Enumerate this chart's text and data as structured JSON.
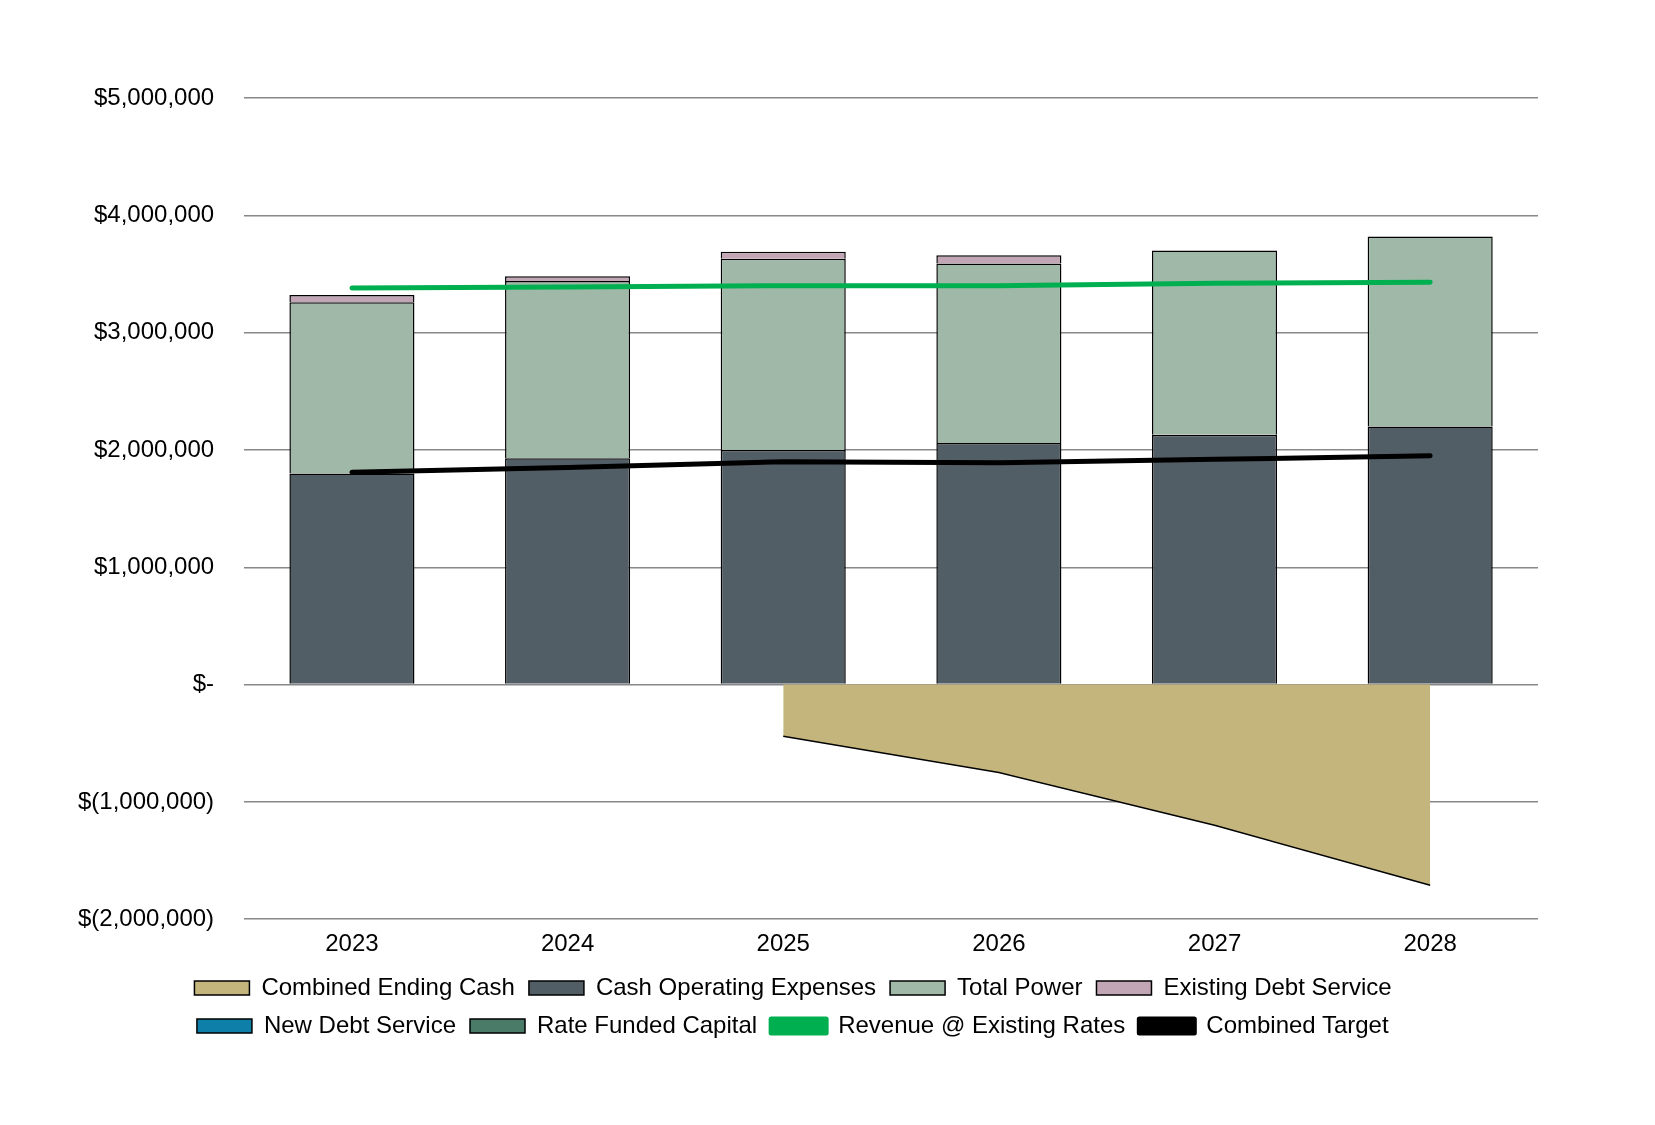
{
  "chart_data": {
    "type": "bar",
    "stacked": true,
    "categories": [
      "2023",
      "2024",
      "2025",
      "2026",
      "2027",
      "2028"
    ],
    "series": [
      {
        "name": "Combined Ending Cash",
        "type": "area",
        "color": "#c4b57d",
        "values": [
          null,
          null,
          -440000,
          -750000,
          -1200000,
          -1710000
        ]
      },
      {
        "name": "Cash Operating Expenses",
        "color": "#525e66",
        "values": [
          1800000,
          1930000,
          2000000,
          2060000,
          2130000,
          2200000
        ]
      },
      {
        "name": "Total Power",
        "color": "#a0b8a8",
        "values": [
          1460000,
          1510000,
          1630000,
          1530000,
          1570000,
          1620000
        ]
      },
      {
        "name": "Existing Debt Service",
        "color": "#c2a6b5",
        "values": [
          60000,
          40000,
          60000,
          70000,
          0,
          0
        ]
      },
      {
        "name": "New Debt Service",
        "color": "#0e7fa8",
        "values": [
          0,
          0,
          0,
          0,
          0,
          0
        ]
      },
      {
        "name": "Rate Funded Capital",
        "color": "#4a7a68",
        "values": [
          0,
          0,
          0,
          0,
          0,
          0
        ]
      },
      {
        "name": "Revenue @ Existing Rates",
        "type": "line",
        "color": "#00b050",
        "values": [
          3380000,
          3390000,
          3400000,
          3400000,
          3420000,
          3430000
        ]
      },
      {
        "name": "Combined Target",
        "type": "line",
        "color": "#000000",
        "values": [
          1810000,
          1850000,
          1900000,
          1890000,
          1920000,
          1950000
        ]
      }
    ],
    "ylim": [
      -2000000,
      5000000
    ],
    "yticks": [
      {
        "value": -2000000,
        "label": "$(2,000,000)"
      },
      {
        "value": -1000000,
        "label": "$(1,000,000)"
      },
      {
        "value": 0,
        "label": "$-"
      },
      {
        "value": 1000000,
        "label": "$1,000,000"
      },
      {
        "value": 2000000,
        "label": "$2,000,000"
      },
      {
        "value": 3000000,
        "label": "$3,000,000"
      },
      {
        "value": 4000000,
        "label": "$4,000,000"
      },
      {
        "value": 5000000,
        "label": "$5,000,000"
      }
    ],
    "grid": "y",
    "legend": "bottom"
  }
}
